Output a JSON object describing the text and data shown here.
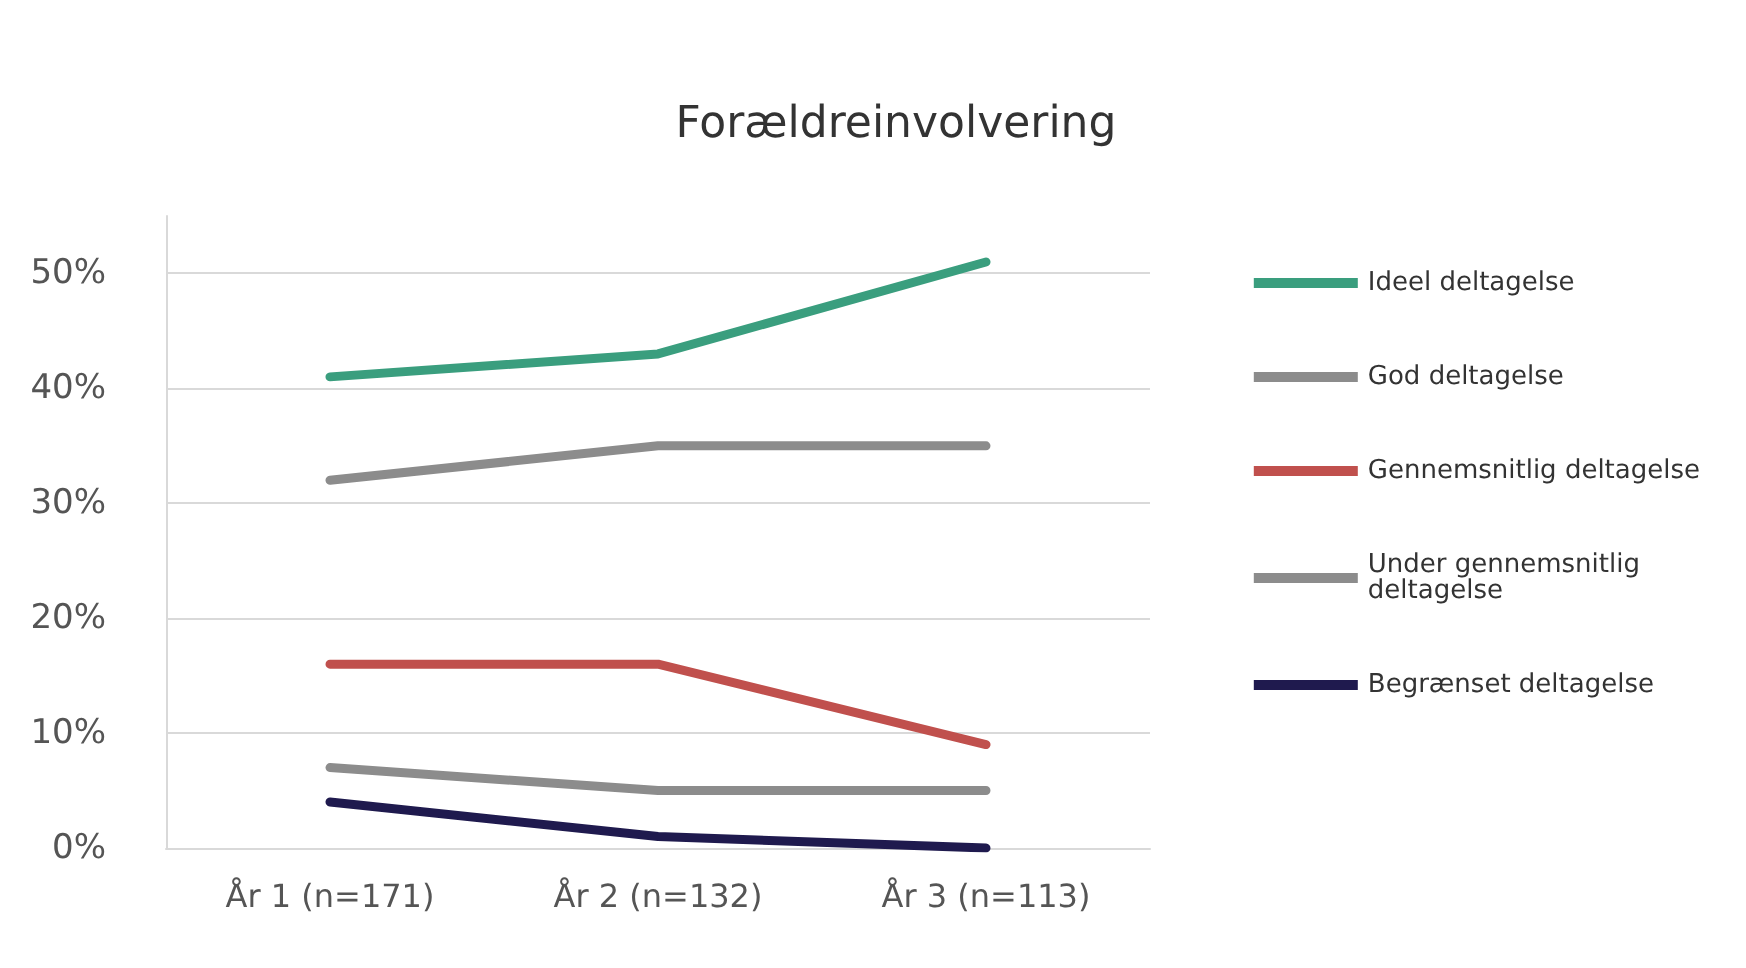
{
  "chart_data": {
    "type": "line",
    "title": "Forældreinvolvering",
    "categories": [
      "År 1 (n=171)",
      "År 2 (n=132)",
      "År 3 (n=113)"
    ],
    "series": [
      {
        "name": "Ideel deltagelse",
        "color": "#3a9e7e",
        "values": [
          41,
          43,
          51
        ]
      },
      {
        "name": "God deltagelse",
        "color": "#8c8c8c",
        "values": [
          32,
          35,
          35
        ]
      },
      {
        "name": "Gennemsnitlig deltagelse",
        "color": "#c0504d",
        "values": [
          16,
          16,
          9
        ]
      },
      {
        "name": "Under gennemsnitlig deltagelse",
        "color": "#8c8c8c",
        "values": [
          7,
          5,
          5
        ]
      },
      {
        "name": "Begrænset deltagelse",
        "color": "#1f1a4e",
        "values": [
          4,
          1,
          0
        ]
      }
    ],
    "yticks": [
      {
        "value": 0,
        "label": "0%"
      },
      {
        "value": 10,
        "label": "10%"
      },
      {
        "value": 20,
        "label": "20%"
      },
      {
        "value": 30,
        "label": "30%"
      },
      {
        "value": 40,
        "label": "40%"
      },
      {
        "value": 50,
        "label": "50%"
      }
    ],
    "ylim": [
      0,
      55
    ],
    "grid": "y",
    "legend": "right",
    "marker": "none",
    "line_style": "solid"
  }
}
